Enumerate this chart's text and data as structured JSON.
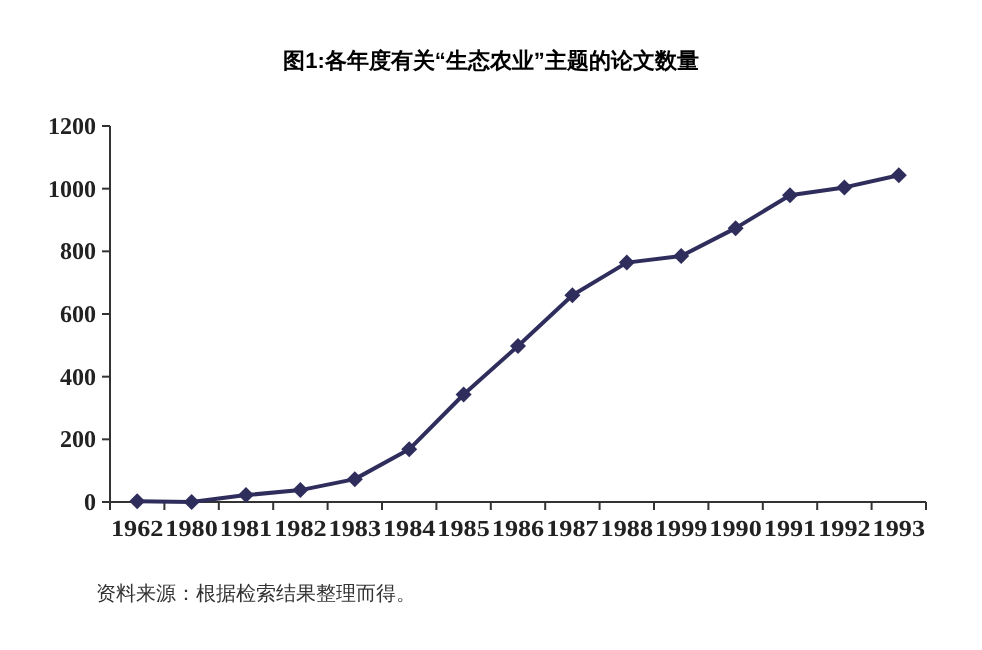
{
  "chart_data": {
    "type": "line",
    "title": "图1:各年度有关“生态农业”主题的论文数量",
    "categories": [
      "1962",
      "1980",
      "1981",
      "1982",
      "1983",
      "1984",
      "1985",
      "1986",
      "1987",
      "1988",
      "1999",
      "1990",
      "1991",
      "1992",
      "1993"
    ],
    "series": [
      {
        "color": "#2f2d5c",
        "values": [
          2,
          0,
          22,
          38,
          73,
          168,
          343,
          498,
          660,
          764,
          785,
          874,
          979,
          1004,
          1043
        ]
      }
    ],
    "ylim": [
      0,
      1200
    ],
    "yticks": [
      0,
      200,
      400,
      600,
      800,
      1000,
      1200
    ],
    "marker": "diamond",
    "grid": false,
    "annotations": [
      "资料来源：根据检索结果整理而得。"
    ]
  }
}
